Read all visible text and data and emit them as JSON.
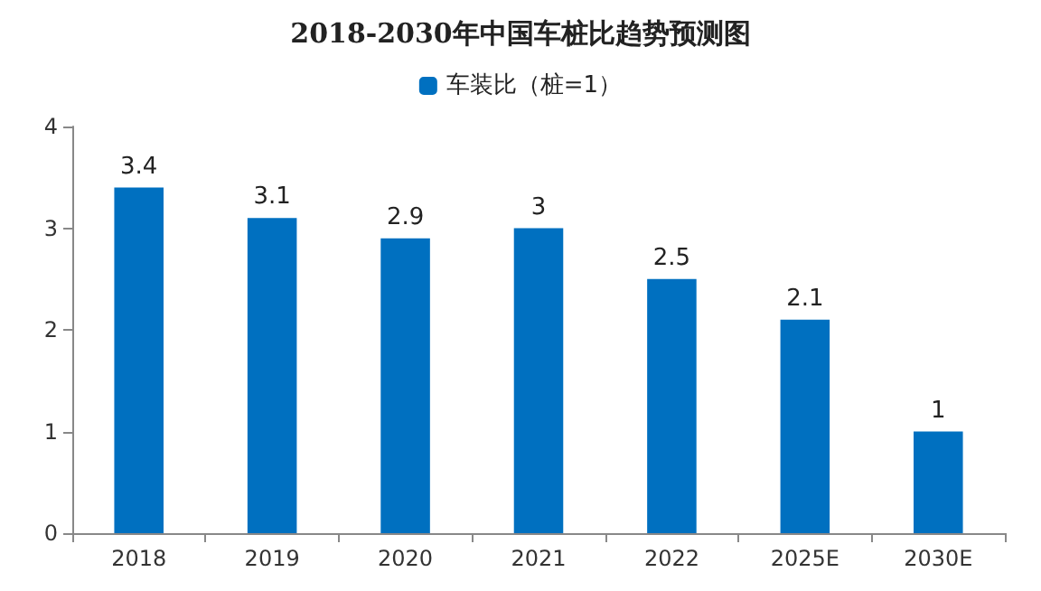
{
  "chart_data": {
    "type": "bar",
    "title": "2018-2030年中国车桩比趋势预测图",
    "categories": [
      "2018",
      "2019",
      "2020",
      "2021",
      "2022",
      "2025E",
      "2030E"
    ],
    "series": [
      {
        "name": "车装比（桩=1）",
        "color": "#0070c0",
        "values": [
          3.4,
          3.1,
          2.9,
          3,
          2.5,
          2.1,
          1
        ]
      }
    ],
    "ylim": [
      0,
      4
    ],
    "yticks": [
      0,
      1,
      2,
      3,
      4
    ],
    "grid": false,
    "legend": "top",
    "data_labels": true
  }
}
